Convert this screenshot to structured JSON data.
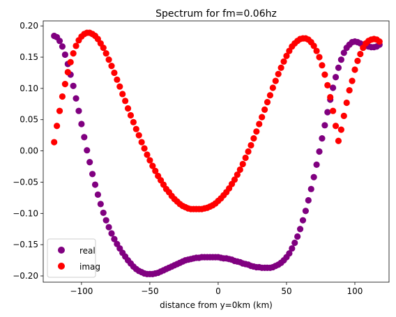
{
  "chart_data": {
    "type": "scatter",
    "title": "Spectrum for fm=0.06hz",
    "xlabel": "distance from y=0km (km)",
    "ylabel": "",
    "xlim": [
      -128,
      125
    ],
    "ylim": [
      -0.21,
      0.208
    ],
    "xticks": [
      -100,
      -50,
      0,
      50,
      100
    ],
    "xtick_labels": [
      "−100",
      "−50",
      "0",
      "50",
      "100"
    ],
    "yticks": [
      0.2,
      0.15,
      0.1,
      0.05,
      0.0,
      -0.05,
      -0.1,
      -0.15,
      -0.2
    ],
    "ytick_labels": [
      "0.20",
      "0.15",
      "0.10",
      "0.05",
      "0.00",
      "−0.05",
      "−0.10",
      "−0.15",
      "−0.20"
    ],
    "grid": false,
    "legend_position": "lower-left",
    "series": [
      {
        "name": "real",
        "color": "#800080",
        "x": [
          -120,
          -118,
          -116,
          -114,
          -112,
          -110,
          -108,
          -106,
          -104,
          -102,
          -100,
          -98,
          -96,
          -94,
          -92,
          -90,
          -88,
          -86,
          -84,
          -82,
          -80,
          -78,
          -76,
          -74,
          -72,
          -70,
          -68,
          -66,
          -64,
          -62,
          -60,
          -58,
          -56,
          -54,
          -52,
          -50,
          -48,
          -46,
          -44,
          -42,
          -40,
          -38,
          -36,
          -34,
          -32,
          -30,
          -28,
          -26,
          -24,
          -22,
          -20,
          -18,
          -16,
          -14,
          -12,
          -10,
          -8,
          -6,
          -4,
          -2,
          0,
          2,
          4,
          6,
          8,
          10,
          12,
          14,
          16,
          18,
          20,
          22,
          24,
          26,
          28,
          30,
          32,
          34,
          36,
          38,
          40,
          42,
          44,
          46,
          48,
          50,
          52,
          54,
          56,
          58,
          60,
          62,
          64,
          66,
          68,
          70,
          72,
          74,
          76,
          78,
          80,
          82,
          84,
          86,
          88,
          90,
          92,
          94,
          96,
          98,
          100,
          102,
          104,
          106,
          108,
          110,
          112,
          114,
          116,
          118
        ],
        "y": [
          0.184,
          0.182,
          0.176,
          0.167,
          0.154,
          0.139,
          0.122,
          0.104,
          0.084,
          0.064,
          0.043,
          0.022,
          0.001,
          -0.018,
          -0.037,
          -0.054,
          -0.07,
          -0.085,
          -0.099,
          -0.111,
          -0.122,
          -0.132,
          -0.141,
          -0.149,
          -0.156,
          -0.163,
          -0.169,
          -0.175,
          -0.18,
          -0.185,
          -0.189,
          -0.192,
          -0.194,
          -0.196,
          -0.197,
          -0.197,
          -0.197,
          -0.196,
          -0.195,
          -0.193,
          -0.191,
          -0.189,
          -0.187,
          -0.185,
          -0.183,
          -0.181,
          -0.179,
          -0.177,
          -0.175,
          -0.174,
          -0.173,
          -0.172,
          -0.171,
          -0.171,
          -0.17,
          -0.17,
          -0.17,
          -0.17,
          -0.17,
          -0.17,
          -0.17,
          -0.171,
          -0.172,
          -0.172,
          -0.173,
          -0.174,
          -0.176,
          -0.177,
          -0.178,
          -0.18,
          -0.181,
          -0.182,
          -0.184,
          -0.185,
          -0.186,
          -0.186,
          -0.187,
          -0.187,
          -0.187,
          -0.187,
          -0.186,
          -0.184,
          -0.182,
          -0.179,
          -0.175,
          -0.17,
          -0.164,
          -0.156,
          -0.147,
          -0.137,
          -0.125,
          -0.111,
          -0.096,
          -0.079,
          -0.061,
          -0.042,
          -0.022,
          -0.001,
          0.02,
          0.041,
          0.062,
          0.082,
          0.101,
          0.118,
          0.133,
          0.146,
          0.157,
          0.165,
          0.17,
          0.174,
          0.175,
          0.174,
          0.172,
          0.17,
          0.168,
          0.167,
          0.166,
          0.166,
          0.167,
          0.17
        ],
        "x_display": [
          -120,
          -118,
          -116,
          -114,
          -112,
          -110,
          -108,
          -106,
          -104,
          -102,
          -100,
          -98,
          -96,
          -94,
          -92,
          -90,
          -88,
          -86,
          -84,
          -82,
          -80,
          -78,
          -76,
          -74,
          -72,
          -70,
          -68,
          -66,
          -64,
          -62,
          -60,
          -58,
          -56,
          -54,
          -52,
          -50,
          -48,
          -46,
          -44,
          -42,
          -40,
          -38,
          -36,
          -34,
          -32,
          -30,
          -28,
          -26,
          -24,
          -22,
          -20,
          -18,
          -16,
          -14,
          -12,
          -10,
          -8,
          -6,
          -4,
          -2,
          0,
          2,
          4,
          6,
          8,
          10,
          12,
          14,
          16,
          18,
          20,
          22,
          24,
          26,
          28,
          30,
          32,
          34,
          36,
          38,
          40,
          42,
          44,
          46,
          48,
          50,
          52,
          54,
          56,
          58,
          60,
          62,
          64,
          66,
          68,
          70,
          72,
          74,
          76,
          78,
          80,
          82,
          84,
          86,
          88,
          90,
          92,
          94,
          96,
          98,
          100,
          102,
          104,
          106,
          108,
          110,
          112,
          114,
          116,
          118
        ]
      },
      {
        "name": "imag",
        "color": "#ff0000",
        "x": [
          -120,
          -118,
          -116,
          -114,
          -112,
          -110,
          -108,
          -106,
          -104,
          -102,
          -100,
          -98,
          -96,
          -94,
          -92,
          -90,
          -88,
          -86,
          -84,
          -82,
          -80,
          -78,
          -76,
          -74,
          -72,
          -70,
          -68,
          -66,
          -64,
          -62,
          -60,
          -58,
          -56,
          -54,
          -52,
          -50,
          -48,
          -46,
          -44,
          -42,
          -40,
          -38,
          -36,
          -34,
          -32,
          -30,
          -28,
          -26,
          -24,
          -22,
          -20,
          -18,
          -16,
          -14,
          -12,
          -10,
          -8,
          -6,
          -4,
          -2,
          0,
          2,
          4,
          6,
          8,
          10,
          12,
          14,
          16,
          18,
          20,
          22,
          24,
          26,
          28,
          30,
          32,
          34,
          36,
          38,
          40,
          42,
          44,
          46,
          48,
          50,
          52,
          54,
          56,
          58,
          60,
          62,
          64,
          66,
          68,
          70,
          72,
          74,
          76,
          78,
          80,
          82,
          84,
          86,
          88,
          90,
          92,
          94,
          96,
          98,
          100,
          102,
          104,
          106,
          108,
          110,
          112,
          114,
          116,
          118
        ],
        "y": [
          0.014,
          0.04,
          0.064,
          0.087,
          0.107,
          0.126,
          0.142,
          0.156,
          0.168,
          0.177,
          0.183,
          0.187,
          0.189,
          0.189,
          0.187,
          0.184,
          0.179,
          0.172,
          0.165,
          0.156,
          0.146,
          0.136,
          0.125,
          0.114,
          0.103,
          0.091,
          0.08,
          0.068,
          0.057,
          0.046,
          0.035,
          0.025,
          0.014,
          0.004,
          -0.006,
          -0.015,
          -0.024,
          -0.032,
          -0.04,
          -0.047,
          -0.054,
          -0.061,
          -0.066,
          -0.072,
          -0.077,
          -0.081,
          -0.085,
          -0.088,
          -0.09,
          -0.092,
          -0.093,
          -0.093,
          -0.093,
          -0.093,
          -0.093,
          -0.092,
          -0.091,
          -0.089,
          -0.087,
          -0.084,
          -0.08,
          -0.076,
          -0.071,
          -0.066,
          -0.06,
          -0.053,
          -0.046,
          -0.038,
          -0.03,
          -0.021,
          -0.011,
          -0.001,
          0.009,
          0.02,
          0.031,
          0.043,
          0.054,
          0.066,
          0.078,
          0.089,
          0.101,
          0.112,
          0.123,
          0.133,
          0.143,
          0.152,
          0.16,
          0.167,
          0.172,
          0.176,
          0.179,
          0.18,
          0.18,
          0.178,
          0.174,
          0.168,
          0.16,
          0.15,
          0.137,
          0.122,
          0.105,
          0.086,
          0.064,
          0.04,
          0.016,
          0.034,
          0.056,
          0.077,
          0.097,
          0.112,
          0.13,
          0.144,
          0.155,
          0.165,
          0.172,
          0.176,
          0.178,
          0.179,
          0.178,
          0.175
        ]
      }
    ]
  }
}
